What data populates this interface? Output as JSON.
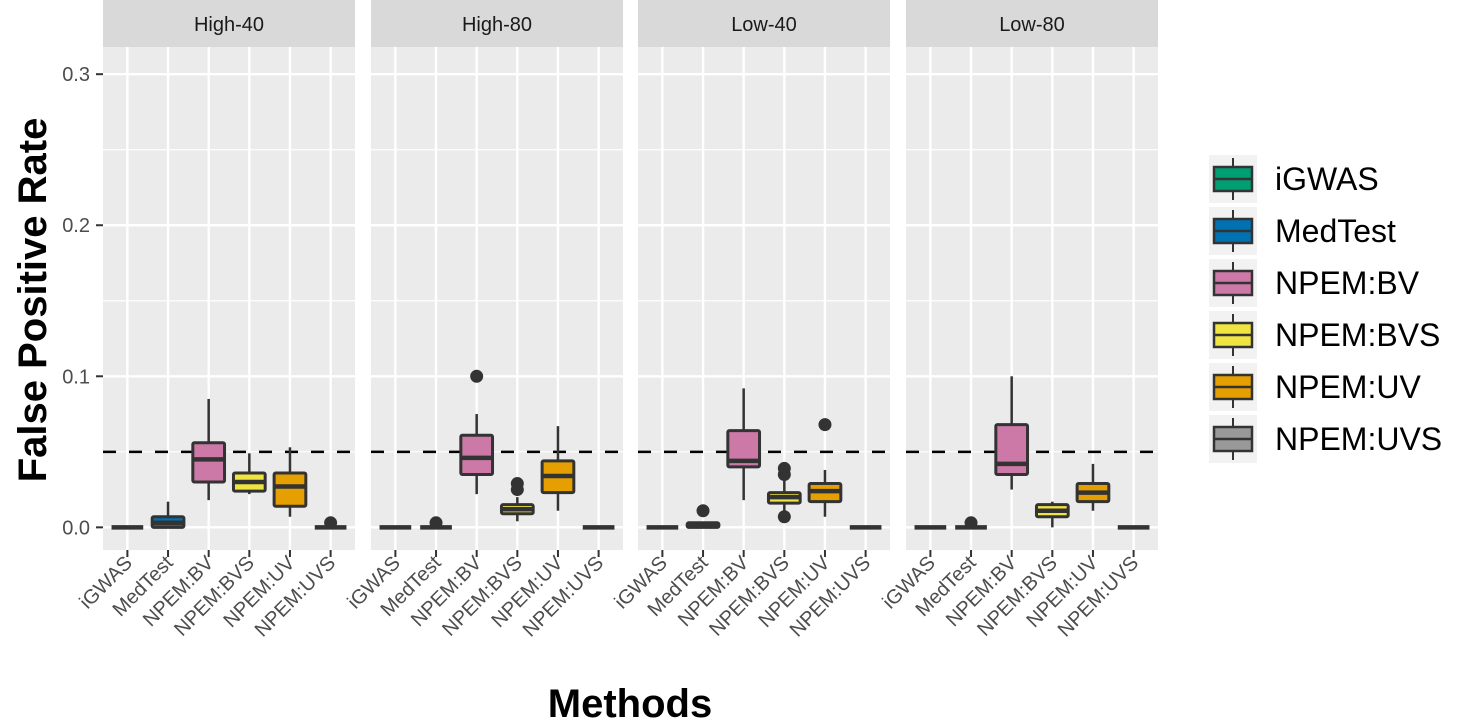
{
  "chart_data": {
    "type": "boxplot",
    "xlabel": "Methods",
    "ylabel": "False Positive Rate",
    "ylim": [
      -0.015,
      0.318
    ],
    "yticks": [
      0.0,
      0.1,
      0.2,
      0.3
    ],
    "ytick_labels": [
      "0.0",
      "0.1",
      "0.2",
      "0.3"
    ],
    "reference_line": {
      "value": 0.05,
      "style": "dashed"
    },
    "grid": true,
    "legend_position": "right",
    "methods": [
      "iGWAS",
      "MedTest",
      "NPEM:BV",
      "NPEM:BVS",
      "NPEM:UV",
      "NPEM:UVS"
    ],
    "colors": [
      "#009E73",
      "#0072B2",
      "#CC79A7",
      "#F0E442",
      "#E69F00",
      "#999999"
    ],
    "panels": [
      {
        "title": "High-40",
        "boxes": [
          {
            "min": 0,
            "q1": 0,
            "median": 0,
            "q3": 0,
            "max": 0,
            "outliers": []
          },
          {
            "min": 0,
            "q1": 0,
            "median": 0.003,
            "q3": 0.007,
            "max": 0.017,
            "outliers": []
          },
          {
            "min": 0.018,
            "q1": 0.03,
            "median": 0.045,
            "q3": 0.056,
            "max": 0.085,
            "outliers": []
          },
          {
            "min": 0.022,
            "q1": 0.024,
            "median": 0.03,
            "q3": 0.036,
            "max": 0.049,
            "outliers": []
          },
          {
            "min": 0.007,
            "q1": 0.014,
            "median": 0.027,
            "q3": 0.036,
            "max": 0.053,
            "outliers": []
          },
          {
            "min": 0,
            "q1": 0,
            "median": 0,
            "q3": 0,
            "max": 0,
            "outliers": [
              0.003
            ]
          }
        ]
      },
      {
        "title": "High-80",
        "boxes": [
          {
            "min": 0,
            "q1": 0,
            "median": 0,
            "q3": 0,
            "max": 0,
            "outliers": []
          },
          {
            "min": 0,
            "q1": 0,
            "median": 0,
            "q3": 0,
            "max": 0,
            "outliers": [
              0.003
            ]
          },
          {
            "min": 0.022,
            "q1": 0.035,
            "median": 0.046,
            "q3": 0.061,
            "max": 0.075,
            "outliers": [
              0.1
            ]
          },
          {
            "min": 0.004,
            "q1": 0.009,
            "median": 0.012,
            "q3": 0.015,
            "max": 0.02,
            "outliers": [
              0.025,
              0.029
            ]
          },
          {
            "min": 0.011,
            "q1": 0.023,
            "median": 0.034,
            "q3": 0.044,
            "max": 0.067,
            "outliers": []
          },
          {
            "min": 0,
            "q1": 0,
            "median": 0,
            "q3": 0,
            "max": 0,
            "outliers": []
          }
        ]
      },
      {
        "title": "Low-40",
        "boxes": [
          {
            "min": 0,
            "q1": 0,
            "median": 0,
            "q3": 0,
            "max": 0,
            "outliers": []
          },
          {
            "min": 0,
            "q1": 0,
            "median": 0.001,
            "q3": 0.003,
            "max": 0.003,
            "outliers": [
              0.011
            ]
          },
          {
            "min": 0.018,
            "q1": 0.04,
            "median": 0.044,
            "q3": 0.064,
            "max": 0.092,
            "outliers": []
          },
          {
            "min": 0.011,
            "q1": 0.016,
            "median": 0.02,
            "q3": 0.023,
            "max": 0.031,
            "outliers": [
              0.007,
              0.035,
              0.039
            ]
          },
          {
            "min": 0.007,
            "q1": 0.017,
            "median": 0.024,
            "q3": 0.029,
            "max": 0.038,
            "outliers": [
              0.068
            ]
          },
          {
            "min": 0,
            "q1": 0,
            "median": 0,
            "q3": 0,
            "max": 0,
            "outliers": []
          }
        ]
      },
      {
        "title": "Low-80",
        "boxes": [
          {
            "min": 0,
            "q1": 0,
            "median": 0,
            "q3": 0,
            "max": 0,
            "outliers": []
          },
          {
            "min": 0,
            "q1": 0,
            "median": 0,
            "q3": 0,
            "max": 0,
            "outliers": [
              0.003
            ]
          },
          {
            "min": 0.025,
            "q1": 0.035,
            "median": 0.042,
            "q3": 0.068,
            "max": 0.1,
            "outliers": []
          },
          {
            "min": 0,
            "q1": 0.007,
            "median": 0.011,
            "q3": 0.015,
            "max": 0.017,
            "outliers": []
          },
          {
            "min": 0.011,
            "q1": 0.017,
            "median": 0.023,
            "q3": 0.029,
            "max": 0.042,
            "outliers": []
          },
          {
            "min": 0,
            "q1": 0,
            "median": 0,
            "q3": 0,
            "max": 0,
            "outliers": []
          }
        ]
      }
    ]
  }
}
